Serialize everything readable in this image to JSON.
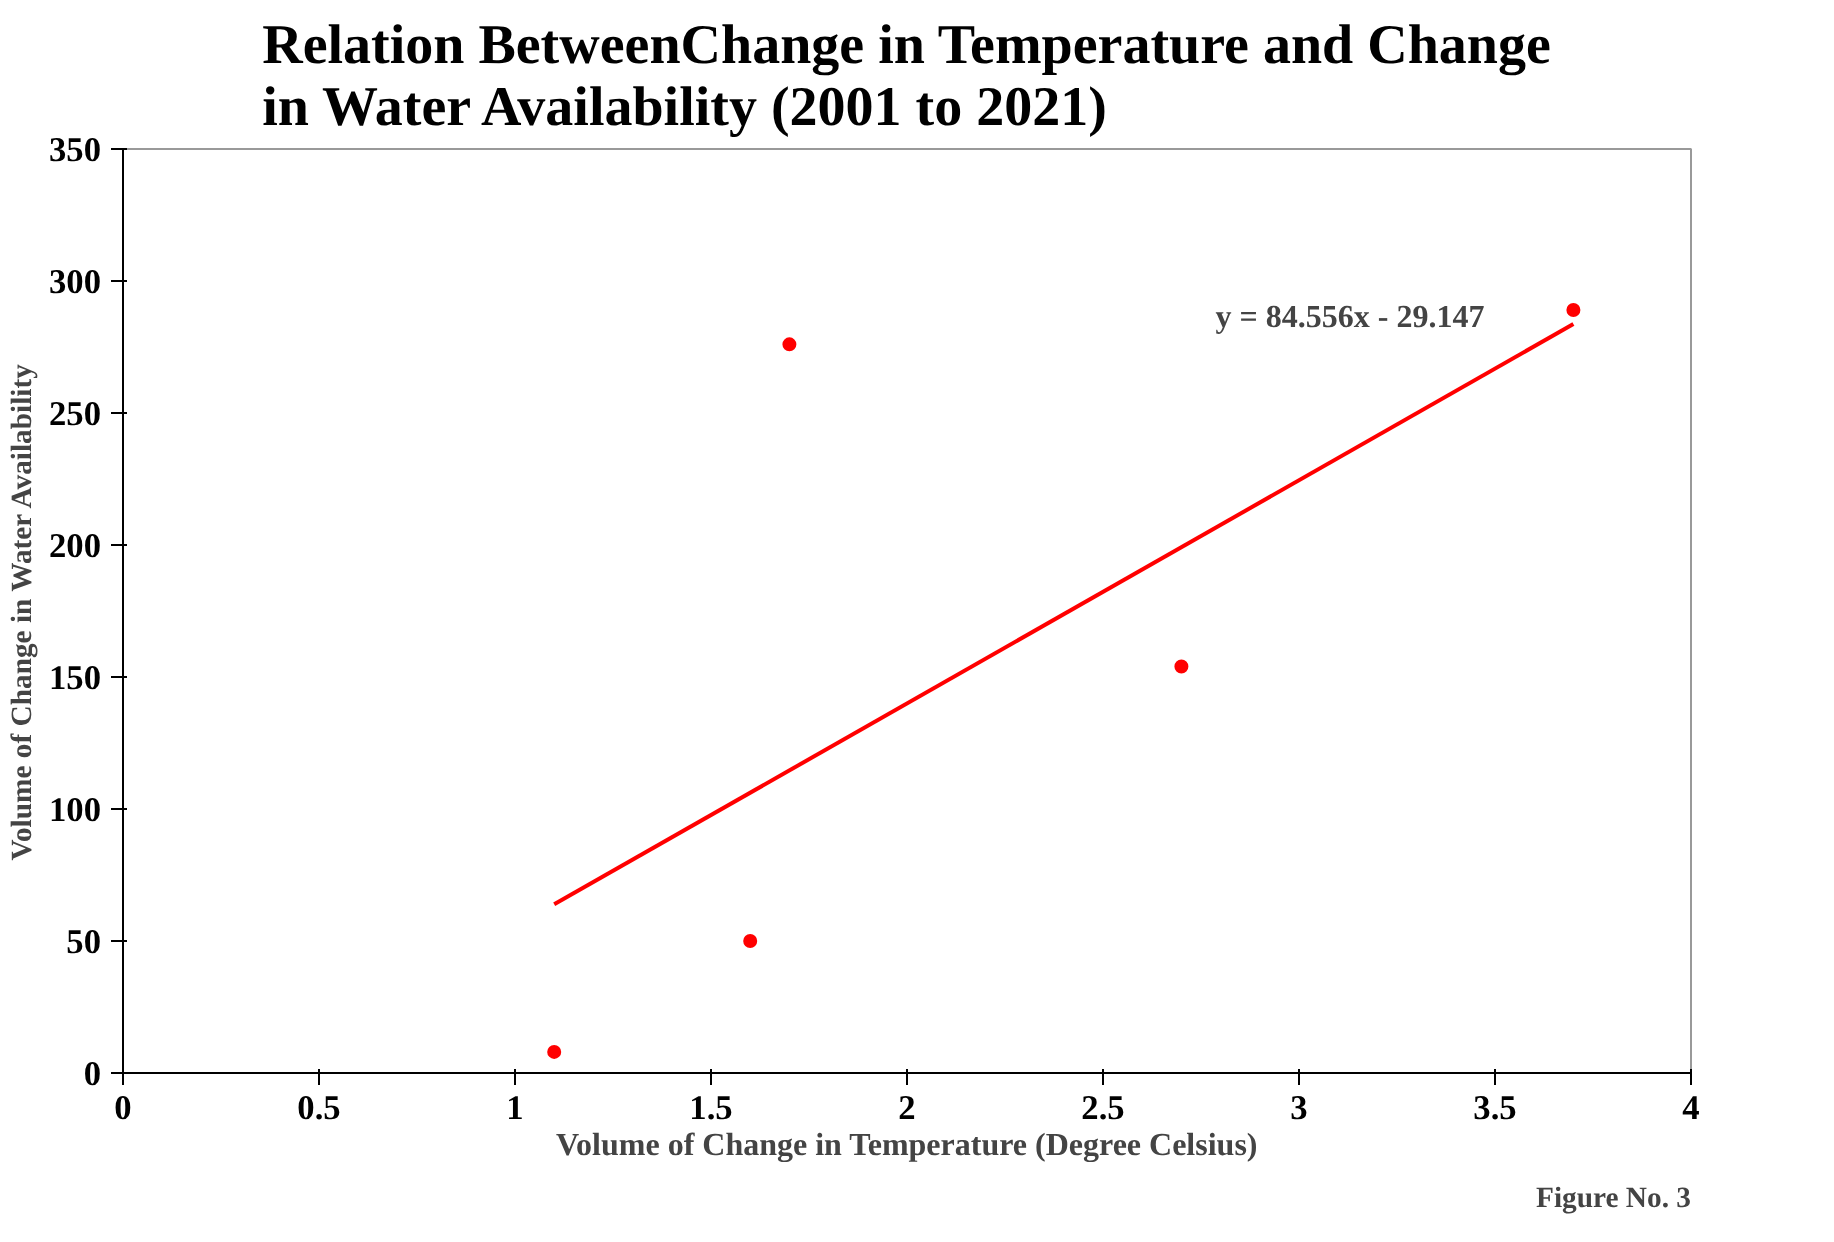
{
  "chart_data": {
    "type": "scatter",
    "title": "Relation BetweenChange in Temperature and Change in Water Availability (2001 to 2021)",
    "xlabel": "Volume of Change in Temperature (Degree Celsius)",
    "ylabel": "Volume of Change in Water Availability",
    "series": [
      {
        "color": "#ff0000",
        "x": [
          1.1,
          1.6,
          1.7,
          2.7,
          3.7
        ],
        "values": [
          8,
          50,
          276,
          154,
          289
        ],
        "marker": "circle"
      },
      {
        "type": "line",
        "color": "#ff0000",
        "x": [
          1.1,
          3.7
        ],
        "values": [
          63.9,
          283.7
        ]
      }
    ],
    "annotations": [
      "y = 84.556x - 29.147",
      "Figure No. 3"
    ],
    "xlim": [
      0,
      4
    ],
    "xticks": [
      0,
      0.5,
      1,
      1.5,
      2,
      2.5,
      3,
      3.5,
      4
    ],
    "ylim": [
      0,
      350
    ],
    "yticks": [
      0,
      50,
      100,
      150,
      200,
      250,
      300,
      350
    ],
    "grid": false
  }
}
